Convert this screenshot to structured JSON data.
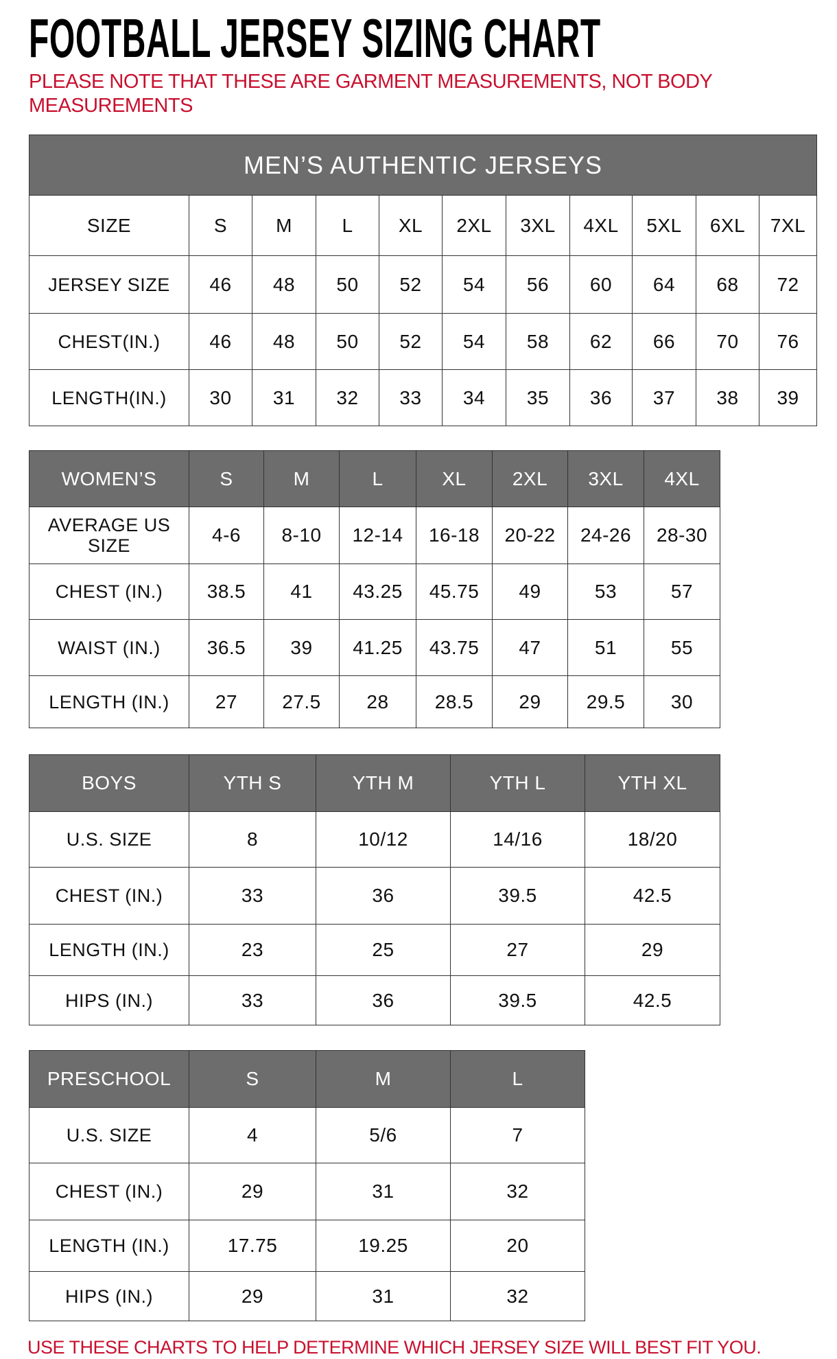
{
  "title": "FOOTBALL JERSEY SIZING CHART",
  "note": "PLEASE NOTE THAT THESE ARE GARMENT MEASUREMENTS, NOT BODY MEASUREMENTS",
  "footer": "USE THESE CHARTS TO HELP DETERMINE WHICH JERSEY SIZE WILL BEST FIT YOU.",
  "colors": {
    "header_bg": "#6d6d6d",
    "note_red": "#c8102e"
  },
  "mens": {
    "banner": "MEN’S AUTHENTIC JERSEYS",
    "header": [
      "SIZE",
      "S",
      "M",
      "L",
      "XL",
      "2XL",
      "3XL",
      "4XL",
      "5XL",
      "6XL",
      "7XL"
    ],
    "rows": [
      [
        "JERSEY SIZE",
        "46",
        "48",
        "50",
        "52",
        "54",
        "56",
        "60",
        "64",
        "68",
        "72"
      ],
      [
        "CHEST(IN.)",
        "46",
        "48",
        "50",
        "52",
        "54",
        "58",
        "62",
        "66",
        "70",
        "76"
      ],
      [
        "LENGTH(IN.)",
        "30",
        "31",
        "32",
        "33",
        "34",
        "35",
        "36",
        "37",
        "38",
        "39"
      ]
    ]
  },
  "womens": {
    "header": [
      "WOMEN’S",
      "S",
      "M",
      "L",
      "XL",
      "2XL",
      "3XL",
      "4XL"
    ],
    "rows": [
      [
        "AVERAGE US SIZE",
        "4-6",
        "8-10",
        "12-14",
        "16-18",
        "20-22",
        "24-26",
        "28-30"
      ],
      [
        "CHEST (IN.)",
        "38.5",
        "41",
        "43.25",
        "45.75",
        "49",
        "53",
        "57"
      ],
      [
        "WAIST (IN.)",
        "36.5",
        "39",
        "41.25",
        "43.75",
        "47",
        "51",
        "55"
      ],
      [
        "LENGTH (IN.)",
        "27",
        "27.5",
        "28",
        "28.5",
        "29",
        "29.5",
        "30"
      ]
    ]
  },
  "boys": {
    "header": [
      "BOYS",
      "YTH S",
      "YTH M",
      "YTH L",
      "YTH XL"
    ],
    "rows": [
      [
        "U.S. SIZE",
        "8",
        "10/12",
        "14/16",
        "18/20"
      ],
      [
        "CHEST (IN.)",
        "33",
        "36",
        "39.5",
        "42.5"
      ],
      [
        "LENGTH (IN.)",
        "23",
        "25",
        "27",
        "29"
      ],
      [
        "HIPS (IN.)",
        "33",
        "36",
        "39.5",
        "42.5"
      ]
    ]
  },
  "preschool": {
    "header": [
      "PRESCHOOL",
      "S",
      "M",
      "L"
    ],
    "rows": [
      [
        "U.S. SIZE",
        "4",
        "5/6",
        "7"
      ],
      [
        "CHEST (IN.)",
        "29",
        "31",
        "32"
      ],
      [
        "LENGTH (IN.)",
        "17.75",
        "19.25",
        "20"
      ],
      [
        "HIPS (IN.)",
        "29",
        "31",
        "32"
      ]
    ]
  }
}
